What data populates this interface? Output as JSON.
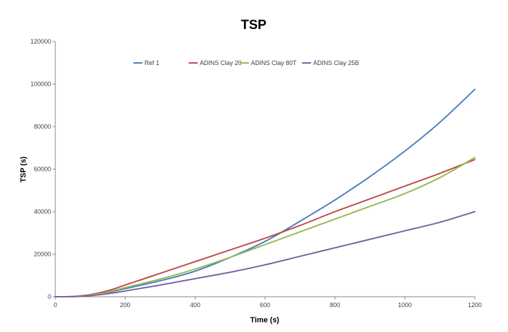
{
  "chart_data": {
    "type": "line",
    "title": "TSP",
    "xlabel": "Time (s)",
    "ylabel": "TSP (s)",
    "xlim": [
      0,
      1200
    ],
    "ylim": [
      0,
      120000
    ],
    "x_ticks": [
      "0",
      "200",
      "400",
      "600",
      "800",
      "1000",
      "1200"
    ],
    "y_ticks": [
      "0",
      "20000",
      "40000",
      "60000",
      "80000",
      "100000",
      "120000"
    ],
    "grid": false,
    "legend_position": "top",
    "x": [
      0,
      30,
      60,
      100,
      150,
      200,
      300,
      400,
      500,
      600,
      700,
      800,
      900,
      1000,
      1100,
      1200
    ],
    "series": [
      {
        "name": "Ref 1",
        "color": "#4a7ebb",
        "values": [
          0,
          0,
          150,
          700,
          2000,
          3800,
          7500,
          12000,
          18500,
          26000,
          35500,
          45500,
          56500,
          68500,
          82000,
          97500
        ]
      },
      {
        "name": "ADINS Clay 20",
        "color": "#be4b48",
        "values": [
          0,
          0,
          250,
          1000,
          2800,
          5500,
          11000,
          16500,
          22000,
          27500,
          33500,
          40000,
          46000,
          52000,
          58000,
          64500
        ]
      },
      {
        "name": "ADINS Clay 80T",
        "color": "#98b954",
        "values": [
          0,
          0,
          150,
          700,
          2200,
          4300,
          8300,
          13000,
          18500,
          24500,
          30500,
          36500,
          42500,
          48500,
          56000,
          65500
        ]
      },
      {
        "name": "ADINS Clay 25B",
        "color": "#7d60a0",
        "values": [
          0,
          0,
          100,
          500,
          1400,
          2700,
          5500,
          8500,
          11500,
          15000,
          19000,
          23000,
          27000,
          31000,
          35000,
          40000
        ]
      }
    ]
  }
}
